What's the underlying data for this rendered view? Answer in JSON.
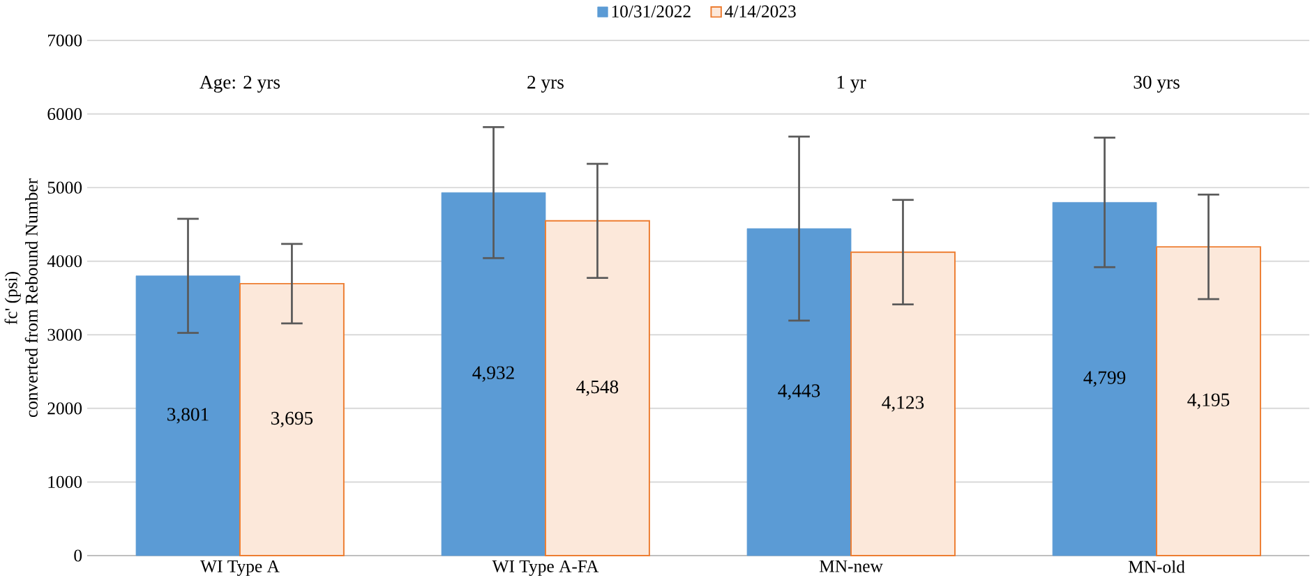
{
  "chart_data": {
    "type": "bar",
    "ylabel": "fc' (psi)\nconverted from Rebound Number",
    "categories": [
      "WI Type A",
      "WI Type A-FA",
      "MN-new",
      "MN-old"
    ],
    "series": [
      {
        "name": "10/31/2022",
        "color": "#5b9bd5",
        "values": [
          3801,
          4932,
          4443,
          4799
        ],
        "errors": [
          775,
          890,
          1250,
          880
        ],
        "value_labels": [
          "3,801",
          "4,932",
          "4,443",
          "4,799"
        ]
      },
      {
        "name": "4/14/2023",
        "color": "#ed7d31",
        "values": [
          3695,
          4548,
          4123,
          4195
        ],
        "errors": [
          540,
          775,
          710,
          710
        ],
        "value_labels": [
          "3,695",
          "4,548",
          "4,123",
          "4,195"
        ]
      }
    ],
    "annotations": [
      "Age: 2 yrs",
      "2 yrs",
      "1 yr",
      "30 yrs"
    ],
    "ylim": [
      0,
      7000
    ],
    "yticks": [
      0,
      1000,
      2000,
      3000,
      4000,
      5000,
      6000,
      7000
    ],
    "grid": "y",
    "legend": "top"
  }
}
